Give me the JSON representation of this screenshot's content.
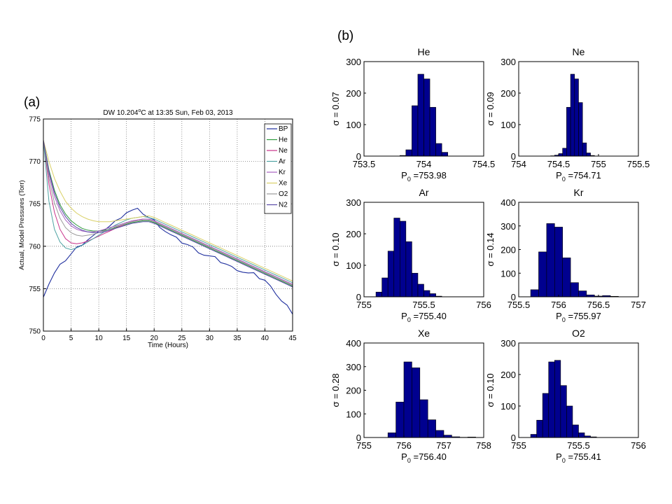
{
  "panel_labels": {
    "a": "(a)",
    "b": "(b)"
  },
  "chart_data": [
    {
      "type": "line",
      "title": "DW 10.204°C at 13:35 Sun, Feb 03, 2013",
      "title_parts": {
        "pre": "DW 10.204",
        "sup": "o",
        "post": "C at 13:35 Sun, Feb 03, 2013"
      },
      "xlabel": "Time (Hours)",
      "ylabel": "Actual, Model Pressures (Torr)",
      "xlim": [
        0,
        45
      ],
      "ylim": [
        750,
        775
      ],
      "xticks": [
        0,
        5,
        10,
        15,
        20,
        25,
        30,
        35,
        40,
        45
      ],
      "yticks": [
        750,
        755,
        760,
        765,
        770,
        775
      ],
      "grid": true,
      "legend_position": "top-right",
      "x": [
        0,
        1,
        2,
        3,
        4,
        5,
        6,
        7,
        8,
        9,
        10,
        11,
        12,
        13,
        14,
        15,
        16,
        17,
        18,
        19,
        20,
        21,
        22,
        23,
        24,
        25,
        26,
        27,
        28,
        29,
        30,
        31,
        32,
        33,
        34,
        35,
        36,
        37,
        38,
        39,
        40,
        41,
        42,
        43,
        44,
        45
      ],
      "series": [
        {
          "name": "BP",
          "color": "#1f2f9e",
          "values": [
            754.0,
            755.6,
            756.8,
            757.7,
            758.4,
            759.1,
            759.8,
            760.3,
            760.8,
            761.2,
            761.6,
            762.0,
            762.4,
            762.9,
            763.5,
            764.0,
            764.2,
            764.3,
            763.9,
            763.4,
            763.0,
            762.4,
            761.8,
            761.3,
            760.9,
            760.5,
            760.2,
            759.8,
            759.4,
            759.0,
            758.8,
            758.6,
            758.2,
            757.9,
            757.5,
            757.3,
            757.0,
            756.8,
            756.7,
            756.3,
            756.0,
            755.2,
            754.5,
            753.6,
            753.0,
            752.0
          ]
        },
        {
          "name": "He",
          "color": "#2e9a3c",
          "values": [
            772.5,
            769.0,
            766.6,
            764.9,
            763.8,
            763.0,
            762.5,
            762.1,
            761.9,
            761.8,
            761.8,
            761.9,
            762.0,
            762.2,
            762.4,
            762.6,
            762.8,
            762.9,
            763.0,
            763.0,
            762.8,
            762.5,
            762.2,
            761.9,
            761.6,
            761.3,
            761.0,
            760.7,
            760.4,
            760.1,
            759.8,
            759.5,
            759.2,
            758.9,
            758.6,
            758.3,
            758.0,
            757.7,
            757.4,
            757.1,
            756.8,
            756.5,
            756.2,
            755.9,
            755.6,
            755.3
          ]
        },
        {
          "name": "Ne",
          "color": "#c8328a",
          "values": [
            772.5,
            767.3,
            764.0,
            762.0,
            760.9,
            760.4,
            760.3,
            760.4,
            760.6,
            760.9,
            761.2,
            761.5,
            761.8,
            762.1,
            762.4,
            762.7,
            762.9,
            763.1,
            763.2,
            763.2,
            763.0,
            762.7,
            762.4,
            762.1,
            761.8,
            761.5,
            761.2,
            760.9,
            760.6,
            760.3,
            760.0,
            759.7,
            759.4,
            759.1,
            758.8,
            758.5,
            758.2,
            757.9,
            757.6,
            757.3,
            757.0,
            756.7,
            756.4,
            756.1,
            755.8,
            755.5
          ]
        },
        {
          "name": "Ar",
          "color": "#4fa3a3",
          "values": [
            772.5,
            765.3,
            762.0,
            760.5,
            759.8,
            759.6,
            759.8,
            760.1,
            760.5,
            760.9,
            761.3,
            761.7,
            762.1,
            762.5,
            762.8,
            763.1,
            763.3,
            763.4,
            763.5,
            763.4,
            763.2,
            762.9,
            762.6,
            762.3,
            762.0,
            761.7,
            761.4,
            761.1,
            760.8,
            760.5,
            760.2,
            759.9,
            759.6,
            759.3,
            759.0,
            758.7,
            758.4,
            758.1,
            757.8,
            757.5,
            757.2,
            756.9,
            756.6,
            756.3,
            756.0,
            755.7
          ]
        },
        {
          "name": "Kr",
          "color": "#a860c0",
          "values": [
            772.5,
            768.5,
            765.9,
            764.2,
            763.1,
            762.4,
            762.0,
            761.8,
            761.7,
            761.7,
            761.8,
            762.0,
            762.2,
            762.4,
            762.6,
            762.8,
            763.0,
            763.1,
            763.2,
            763.2,
            763.0,
            762.7,
            762.4,
            762.1,
            761.8,
            761.5,
            761.2,
            760.9,
            760.6,
            760.3,
            760.0,
            759.7,
            759.4,
            759.1,
            758.8,
            758.5,
            758.2,
            757.9,
            757.6,
            757.3,
            757.0,
            756.7,
            756.4,
            756.1,
            755.8,
            755.5
          ]
        },
        {
          "name": "Xe",
          "color": "#d9d066",
          "values": [
            772.5,
            770.0,
            768.0,
            766.5,
            765.3,
            764.5,
            763.9,
            763.5,
            763.2,
            763.0,
            762.9,
            762.9,
            762.9,
            763.0,
            763.1,
            763.2,
            763.3,
            763.4,
            763.5,
            763.6,
            763.4,
            763.1,
            762.8,
            762.5,
            762.2,
            761.9,
            761.6,
            761.3,
            761.0,
            760.7,
            760.4,
            760.1,
            759.8,
            759.5,
            759.2,
            758.9,
            758.6,
            758.3,
            758.0,
            757.7,
            757.4,
            757.1,
            756.8,
            756.5,
            756.2,
            755.9
          ]
        },
        {
          "name": "O2",
          "color": "#9a9a9a",
          "values": [
            772.5,
            768.0,
            765.1,
            763.3,
            762.2,
            761.6,
            761.3,
            761.2,
            761.3,
            761.4,
            761.6,
            761.8,
            762.0,
            762.3,
            762.5,
            762.7,
            762.9,
            763.0,
            763.1,
            763.1,
            762.9,
            762.6,
            762.3,
            762.0,
            761.7,
            761.4,
            761.1,
            760.8,
            760.5,
            760.2,
            759.9,
            759.6,
            759.3,
            759.0,
            758.7,
            758.4,
            758.1,
            757.8,
            757.5,
            757.2,
            756.9,
            756.6,
            756.3,
            756.0,
            755.7,
            755.4
          ]
        },
        {
          "name": "N2",
          "color": "#5a4ba8",
          "values": [
            772.5,
            768.8,
            766.3,
            764.6,
            763.5,
            762.7,
            762.2,
            761.9,
            761.7,
            761.6,
            761.6,
            761.7,
            761.9,
            762.1,
            762.3,
            762.5,
            762.7,
            762.8,
            762.9,
            762.9,
            762.7,
            762.4,
            762.1,
            761.8,
            761.5,
            761.2,
            760.9,
            760.6,
            760.3,
            760.0,
            759.7,
            759.4,
            759.1,
            758.8,
            758.5,
            758.2,
            757.9,
            757.6,
            757.3,
            757.0,
            756.7,
            756.4,
            756.1,
            755.8,
            755.5,
            755.2
          ]
        }
      ]
    },
    {
      "type": "bar",
      "title": "He",
      "xlim": [
        753.5,
        754.5
      ],
      "xticks": [
        753.5,
        754,
        754.5
      ],
      "ylim": [
        0,
        300
      ],
      "yticks": [
        0,
        100,
        200,
        300
      ],
      "ylabel": "σ = 0.07",
      "xlabel_pre": "P",
      "xlabel_sub": "0",
      "xlabel_post": " =753.98",
      "bar_color": "#00008f",
      "bin_edges": [
        753.8,
        753.85,
        753.9,
        753.95,
        754.0,
        754.05,
        754.1,
        754.15,
        754.2
      ],
      "values": [
        2,
        20,
        160,
        260,
        245,
        155,
        40,
        12
      ]
    },
    {
      "type": "bar",
      "title": "Ne",
      "xlim": [
        754.0,
        755.5
      ],
      "xticks": [
        754,
        754.5,
        755,
        755.5
      ],
      "ylim": [
        0,
        300
      ],
      "yticks": [
        0,
        100,
        200,
        300
      ],
      "ylabel": "σ = 0.09",
      "xlabel_pre": "P",
      "xlabel_sub": "0",
      "xlabel_post": " =754.71",
      "bar_color": "#00008f",
      "bin_edges": [
        754.4,
        754.45,
        754.5,
        754.55,
        754.6,
        754.65,
        754.7,
        754.75,
        754.8,
        754.85,
        754.9,
        754.95
      ],
      "values": [
        1,
        3,
        8,
        25,
        155,
        260,
        245,
        170,
        42,
        10,
        2
      ]
    },
    {
      "type": "bar",
      "title": "Ar",
      "xlim": [
        755,
        756
      ],
      "xticks": [
        755,
        755.5,
        756
      ],
      "ylim": [
        0,
        300
      ],
      "yticks": [
        0,
        100,
        200,
        300
      ],
      "ylabel": "σ = 0.10",
      "xlabel_pre": "P",
      "xlabel_sub": "0",
      "xlabel_post": " =755.40",
      "bar_color": "#00008f",
      "bin_edges": [
        755.1,
        755.15,
        755.2,
        755.25,
        755.3,
        755.35,
        755.4,
        755.45,
        755.5,
        755.55,
        755.6,
        755.65
      ],
      "values": [
        15,
        60,
        145,
        250,
        240,
        175,
        75,
        40,
        20,
        10,
        2
      ]
    },
    {
      "type": "bar",
      "title": "Kr",
      "xlim": [
        755.5,
        757
      ],
      "xticks": [
        755.5,
        756,
        756.5,
        757
      ],
      "ylim": [
        0,
        400
      ],
      "yticks": [
        0,
        100,
        200,
        300,
        400
      ],
      "ylabel": "σ = 0.14",
      "xlabel_pre": "P",
      "xlabel_sub": "0",
      "xlabel_post": " =755.97",
      "bar_color": "#00008f",
      "bin_edges": [
        755.65,
        755.75,
        755.85,
        755.95,
        756.05,
        756.15,
        756.25,
        756.35,
        756.45,
        756.55,
        756.65,
        756.75
      ],
      "values": [
        30,
        190,
        310,
        295,
        165,
        60,
        25,
        8,
        3,
        5,
        2
      ]
    },
    {
      "type": "bar",
      "title": "Xe",
      "xlim": [
        755,
        758
      ],
      "xticks": [
        755,
        756,
        757,
        758
      ],
      "ylim": [
        0,
        400
      ],
      "yticks": [
        0,
        100,
        200,
        300,
        400
      ],
      "ylabel": "σ = 0.28",
      "xlabel_pre": "P",
      "xlabel_sub": "0",
      "xlabel_post": " =756.40",
      "bar_color": "#00008f",
      "bin_edges": [
        755.6,
        755.8,
        756.0,
        756.2,
        756.4,
        756.6,
        756.8,
        757.0,
        757.2,
        757.4,
        757.6,
        757.8
      ],
      "values": [
        20,
        150,
        320,
        295,
        160,
        75,
        30,
        10,
        3,
        1,
        2
      ]
    },
    {
      "type": "bar",
      "title": "O2",
      "xlim": [
        755,
        756
      ],
      "xticks": [
        755,
        755.5,
        756
      ],
      "ylim": [
        0,
        300
      ],
      "yticks": [
        0,
        100,
        200,
        300
      ],
      "ylabel": "σ = 0.10",
      "xlabel_pre": "P",
      "xlabel_sub": "0",
      "xlabel_post": " =755.41",
      "bar_color": "#00008f",
      "bin_edges": [
        755.1,
        755.15,
        755.2,
        755.25,
        755.3,
        755.35,
        755.4,
        755.45,
        755.5,
        755.55,
        755.6,
        755.65
      ],
      "values": [
        10,
        55,
        140,
        240,
        245,
        165,
        100,
        40,
        15,
        5,
        2
      ]
    }
  ]
}
